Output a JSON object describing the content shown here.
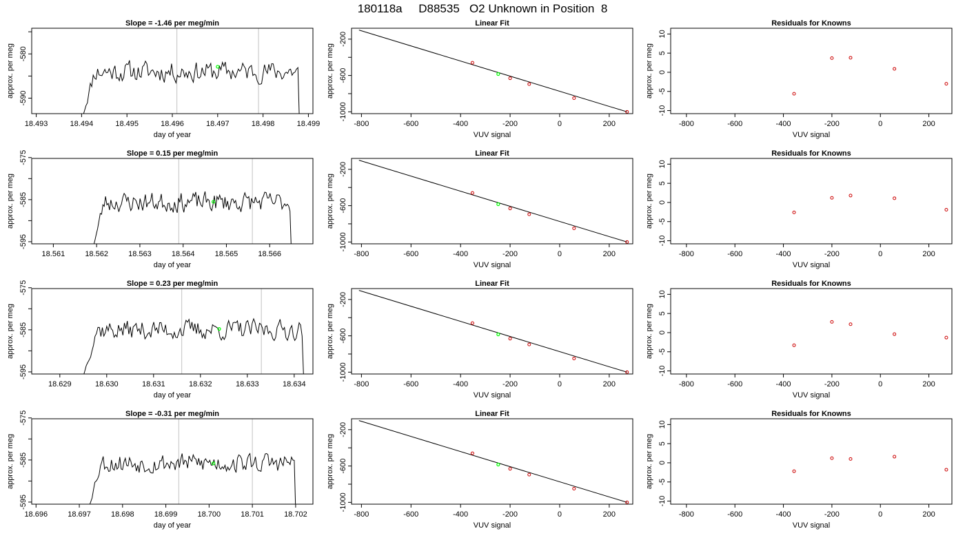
{
  "page": {
    "title": "180118a     D88535   O2 Unknown in Position  8"
  },
  "colors": {
    "axis": "#000000",
    "trace": "#000000",
    "vline": "#cccccc",
    "highlight": "#00ff00",
    "known_point": "#cc0000"
  },
  "chart_data": [
    {
      "type": "line",
      "panel": "trace",
      "row": 0,
      "title": "Slope =  -1.46  per meg/min",
      "xlabel": "day of year",
      "ylabel": "approx. per meg",
      "xlim": [
        18.4929,
        18.4991
      ],
      "ylim": [
        -593.5,
        -574.2
      ],
      "xticks": [
        18.493,
        18.494,
        18.495,
        18.496,
        18.497,
        18.498,
        18.499
      ],
      "xtick_labels": [
        "18.493",
        "18.494",
        "18.495",
        "18.496",
        "18.497",
        "18.498",
        "18.499"
      ],
      "yticks": [
        -590,
        -585,
        -580,
        -575
      ],
      "ytick_labels": [
        "-590",
        "",
        "-580",
        ""
      ],
      "vlines": [
        18.4961,
        18.4979
      ],
      "trace_x_range": [
        18.494,
        18.4988
      ],
      "trace_base": -584.0,
      "trace_seed": 11,
      "trace_start": -595.0,
      "trace_end": -595.0,
      "highlight": {
        "x": 18.497,
        "y": -582.9
      }
    },
    {
      "type": "scatter",
      "panel": "fit",
      "row": 0,
      "title": "Linear Fit",
      "xlabel": "VUV signal",
      "ylabel": "approx. per meg",
      "xlim": [
        -840,
        295
      ],
      "ylim": [
        -1020,
        -80
      ],
      "xticks": [
        -800,
        -600,
        -400,
        -200,
        0,
        200
      ],
      "xtick_labels": [
        "-800",
        "-600",
        "-400",
        "-200",
        "0",
        "200"
      ],
      "yticks": [
        -1000,
        -800,
        -600,
        -400,
        -200
      ],
      "ytick_labels": [
        "-1000",
        "",
        "-600",
        "",
        "-200"
      ],
      "line": {
        "x": [
          -810,
          272
        ],
        "y": [
          -100,
          -1000
        ]
      },
      "points": {
        "x": [
          -352,
          -200,
          -123,
          58,
          272
        ],
        "y": [
          -460,
          -631,
          -695,
          -849,
          -1000
        ]
      },
      "highlight": {
        "x": -248,
        "y": -584
      }
    },
    {
      "type": "scatter",
      "panel": "resid",
      "row": 0,
      "title": "Residuals for Knowns",
      "xlabel": "VUV signal",
      "ylabel": "approx. per meg",
      "xlim": [
        -865,
        295
      ],
      "ylim": [
        -10.8,
        11.5
      ],
      "xticks": [
        -800,
        -600,
        -400,
        -200,
        0,
        200
      ],
      "xtick_labels": [
        "-800",
        "-600",
        "-400",
        "-200",
        "0",
        "200"
      ],
      "yticks": [
        -10,
        -5,
        0,
        5,
        10
      ],
      "ytick_labels": [
        "-10",
        "-5",
        "0",
        "5",
        "10"
      ],
      "points": {
        "x": [
          -356,
          -200,
          -123,
          58,
          272
        ],
        "y": [
          -5.6,
          3.7,
          3.8,
          0.9,
          -3.0
        ]
      }
    },
    {
      "type": "line",
      "panel": "trace",
      "row": 1,
      "title": "Slope =  0.15  per meg/min",
      "xlabel": "day of year",
      "ylabel": "approx. per meg",
      "xlim": [
        18.5605,
        18.567
      ],
      "ylim": [
        -595.5,
        -575.2
      ],
      "xticks": [
        18.561,
        18.562,
        18.563,
        18.564,
        18.565,
        18.566
      ],
      "xtick_labels": [
        "18.561",
        "18.562",
        "18.563",
        "18.564",
        "18.565",
        "18.566"
      ],
      "yticks": [
        -595,
        -590,
        -585,
        -580,
        -575
      ],
      "ytick_labels": [
        "-595",
        "",
        "-585",
        "",
        "-575"
      ],
      "vlines": [
        18.5639,
        18.5656
      ],
      "trace_x_range": [
        18.5619,
        18.5665
      ],
      "trace_base": -585.6,
      "trace_seed": 23,
      "trace_start": -597.0,
      "trace_end": -597.0,
      "highlight": {
        "x": 18.5647,
        "y": -585.5
      }
    },
    {
      "type": "scatter",
      "panel": "fit",
      "row": 1,
      "title": "Linear Fit",
      "xlabel": "VUV signal",
      "ylabel": "approx. per meg",
      "xlim": [
        -840,
        295
      ],
      "ylim": [
        -1020,
        -80
      ],
      "xticks": [
        -800,
        -600,
        -400,
        -200,
        0,
        200
      ],
      "xtick_labels": [
        "-800",
        "-600",
        "-400",
        "-200",
        "0",
        "200"
      ],
      "yticks": [
        -1000,
        -800,
        -600,
        -400,
        -200
      ],
      "ytick_labels": [
        "-1000",
        "",
        "-600",
        "",
        "-200"
      ],
      "line": {
        "x": [
          -810,
          272
        ],
        "y": [
          -100,
          -1000
        ]
      },
      "points": {
        "x": [
          -352,
          -200,
          -123,
          58,
          272
        ],
        "y": [
          -460,
          -631,
          -695,
          -849,
          -1000
        ]
      },
      "highlight": {
        "x": -248,
        "y": -584
      }
    },
    {
      "type": "scatter",
      "panel": "resid",
      "row": 1,
      "title": "Residuals for Knowns",
      "xlabel": "VUV signal",
      "ylabel": "approx. per meg",
      "xlim": [
        -865,
        295
      ],
      "ylim": [
        -10.8,
        11.5
      ],
      "xticks": [
        -800,
        -600,
        -400,
        -200,
        0,
        200
      ],
      "xtick_labels": [
        "-800",
        "-600",
        "-400",
        "-200",
        "0",
        "200"
      ],
      "yticks": [
        -10,
        -5,
        0,
        5,
        10
      ],
      "ytick_labels": [
        "-10",
        "-5",
        "0",
        "5",
        "10"
      ],
      "points": {
        "x": [
          -356,
          -200,
          -123,
          58,
          272
        ],
        "y": [
          -2.6,
          1.2,
          1.8,
          1.1,
          -1.9
        ]
      }
    },
    {
      "type": "line",
      "panel": "trace",
      "row": 2,
      "title": "Slope =  0.23  per meg/min",
      "xlabel": "day of year",
      "ylabel": "approx. per meg",
      "xlim": [
        18.6284,
        18.6344
      ],
      "ylim": [
        -595.5,
        -575.2
      ],
      "xticks": [
        18.629,
        18.63,
        18.631,
        18.632,
        18.633,
        18.634
      ],
      "xtick_labels": [
        "18.629",
        "18.630",
        "18.631",
        "18.632",
        "18.633",
        "18.634"
      ],
      "yticks": [
        -595,
        -590,
        -585,
        -580,
        -575
      ],
      "ytick_labels": [
        "-595",
        "",
        "-585",
        "",
        "-575"
      ],
      "vlines": [
        18.6316,
        18.6333
      ],
      "trace_x_range": [
        18.6295,
        18.6342
      ],
      "trace_base": -585.0,
      "trace_seed": 37,
      "trace_start": -596.0,
      "trace_end": -596.0,
      "highlight": {
        "x": 18.6324,
        "y": -584.8
      }
    },
    {
      "type": "scatter",
      "panel": "fit",
      "row": 2,
      "title": "Linear Fit",
      "xlabel": "VUV signal",
      "ylabel": "approx. per meg",
      "xlim": [
        -840,
        295
      ],
      "ylim": [
        -1020,
        -80
      ],
      "xticks": [
        -800,
        -600,
        -400,
        -200,
        0,
        200
      ],
      "xtick_labels": [
        "-800",
        "-600",
        "-400",
        "-200",
        "0",
        "200"
      ],
      "yticks": [
        -1000,
        -800,
        -600,
        -400,
        -200
      ],
      "ytick_labels": [
        "-1000",
        "",
        "-600",
        "",
        "-200"
      ],
      "line": {
        "x": [
          -810,
          272
        ],
        "y": [
          -100,
          -1000
        ]
      },
      "points": {
        "x": [
          -352,
          -200,
          -123,
          58,
          272
        ],
        "y": [
          -460,
          -631,
          -695,
          -849,
          -1000
        ]
      },
      "highlight": {
        "x": -248,
        "y": -584
      }
    },
    {
      "type": "scatter",
      "panel": "resid",
      "row": 2,
      "title": "Residuals for Knowns",
      "xlabel": "VUV signal",
      "ylabel": "approx. per meg",
      "xlim": [
        -865,
        295
      ],
      "ylim": [
        -10.8,
        11.5
      ],
      "xticks": [
        -800,
        -600,
        -400,
        -200,
        0,
        200
      ],
      "xtick_labels": [
        "-800",
        "-600",
        "-400",
        "-200",
        "0",
        "200"
      ],
      "yticks": [
        -10,
        -5,
        0,
        5,
        10
      ],
      "ytick_labels": [
        "-10",
        "-5",
        "0",
        "5",
        "10"
      ],
      "points": {
        "x": [
          -356,
          -200,
          -123,
          58,
          272
        ],
        "y": [
          -3.3,
          2.8,
          2.2,
          -0.4,
          -1.3
        ]
      }
    },
    {
      "type": "line",
      "panel": "trace",
      "row": 3,
      "title": "Slope =  -0.31  per meg/min",
      "xlabel": "day of year",
      "ylabel": "approx. per meg",
      "xlim": [
        18.6959,
        18.7024
      ],
      "ylim": [
        -595.5,
        -575.2
      ],
      "xticks": [
        18.696,
        18.697,
        18.698,
        18.699,
        18.7,
        18.701,
        18.702
      ],
      "xtick_labels": [
        "18.696",
        "18.697",
        "18.698",
        "18.699",
        "18.700",
        "18.701",
        "18.702"
      ],
      "yticks": [
        -595,
        -590,
        -585,
        -580,
        -575
      ],
      "ytick_labels": [
        "-595",
        "",
        "-585",
        "",
        "-575"
      ],
      "vlines": [
        18.6993,
        18.701
      ],
      "trace_x_range": [
        18.6972,
        18.702
      ],
      "trace_base": -585.7,
      "trace_seed": 53,
      "trace_start": -597.0,
      "trace_end": -597.0,
      "highlight": {
        "x": 18.7001,
        "y": -585.8
      }
    },
    {
      "type": "scatter",
      "panel": "fit",
      "row": 3,
      "title": "Linear Fit",
      "xlabel": "VUV signal",
      "ylabel": "approx. per meg",
      "xlim": [
        -840,
        295
      ],
      "ylim": [
        -1020,
        -80
      ],
      "xticks": [
        -800,
        -600,
        -400,
        -200,
        0,
        200
      ],
      "xtick_labels": [
        "-800",
        "-600",
        "-400",
        "-200",
        "0",
        "200"
      ],
      "yticks": [
        -1000,
        -800,
        -600,
        -400,
        -200
      ],
      "ytick_labels": [
        "-1000",
        "",
        "-600",
        "",
        "-200"
      ],
      "line": {
        "x": [
          -810,
          272
        ],
        "y": [
          -100,
          -1000
        ]
      },
      "points": {
        "x": [
          -352,
          -200,
          -123,
          58,
          272
        ],
        "y": [
          -460,
          -631,
          -695,
          -849,
          -1000
        ]
      },
      "highlight": {
        "x": -248,
        "y": -584
      }
    },
    {
      "type": "scatter",
      "panel": "resid",
      "row": 3,
      "title": "Residuals for Knowns",
      "xlabel": "VUV signal",
      "ylabel": "approx. per meg",
      "xlim": [
        -865,
        295
      ],
      "ylim": [
        -10.8,
        11.5
      ],
      "xticks": [
        -800,
        -600,
        -400,
        -200,
        0,
        200
      ],
      "xtick_labels": [
        "-800",
        "-600",
        "-400",
        "-200",
        "0",
        "200"
      ],
      "yticks": [
        -10,
        -5,
        0,
        5,
        10
      ],
      "ytick_labels": [
        "-10",
        "-5",
        "0",
        "5",
        "10"
      ],
      "points": {
        "x": [
          -356,
          -200,
          -123,
          58,
          272
        ],
        "y": [
          -2.2,
          1.2,
          1.0,
          1.6,
          -1.8
        ]
      }
    }
  ]
}
